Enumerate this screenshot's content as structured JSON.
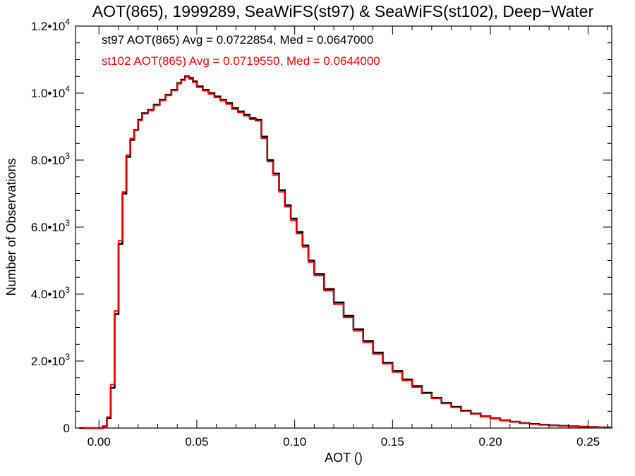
{
  "chart_data": {
    "type": "line",
    "title": "AOT(865), 1999289, SeaWiFS(st97) & SeaWiFS(st102), Deep−Water",
    "xlabel": "AOT ()",
    "ylabel": "Number of Observations",
    "xlim": [
      -0.012,
      0.262
    ],
    "ylim": [
      0,
      12000
    ],
    "x_ticks": [
      0.0,
      0.05,
      0.1,
      0.15,
      0.2,
      0.25
    ],
    "x_tick_labels": [
      "0.00",
      "0.05",
      "0.10",
      "0.15",
      "0.20",
      "0.25"
    ],
    "y_ticks": [
      0,
      2000,
      4000,
      6000,
      8000,
      10000,
      12000
    ],
    "y_tick_labels": [
      {
        "mant": "0",
        "exp": ""
      },
      {
        "mant": "2.0•10",
        "exp": "3"
      },
      {
        "mant": "4.0•10",
        "exp": "3"
      },
      {
        "mant": "6.0•10",
        "exp": "3"
      },
      {
        "mant": "8.0•10",
        "exp": "3"
      },
      {
        "mant": "1.0•10",
        "exp": "4"
      },
      {
        "mant": "1.2•10",
        "exp": "4"
      }
    ],
    "grid": false,
    "step": "histogram",
    "series": [
      {
        "name": "st97",
        "color": "#000000",
        "annotation": "st97 AOT(865) Avg = 0.0722854, Med = 0.0647000",
        "x": [
          -0.01,
          0.0,
          0.002,
          0.004,
          0.006,
          0.008,
          0.01,
          0.012,
          0.014,
          0.016,
          0.018,
          0.02,
          0.022,
          0.025,
          0.028,
          0.031,
          0.034,
          0.037,
          0.04,
          0.042,
          0.044,
          0.046,
          0.048,
          0.05,
          0.053,
          0.056,
          0.059,
          0.062,
          0.065,
          0.068,
          0.071,
          0.074,
          0.077,
          0.08,
          0.083,
          0.086,
          0.089,
          0.092,
          0.095,
          0.098,
          0.101,
          0.104,
          0.107,
          0.11,
          0.115,
          0.12,
          0.125,
          0.13,
          0.135,
          0.14,
          0.145,
          0.15,
          0.155,
          0.16,
          0.165,
          0.17,
          0.175,
          0.18,
          0.185,
          0.19,
          0.195,
          0.2,
          0.205,
          0.21,
          0.215,
          0.22,
          0.225,
          0.23,
          0.235,
          0.24,
          0.245,
          0.25,
          0.255,
          0.262
        ],
        "y": [
          0,
          0,
          50,
          300,
          1200,
          3400,
          5500,
          7000,
          8100,
          8600,
          8900,
          9200,
          9400,
          9500,
          9650,
          9800,
          9950,
          10100,
          10300,
          10400,
          10500,
          10450,
          10350,
          10200,
          10100,
          10000,
          9900,
          9800,
          9700,
          9550,
          9450,
          9350,
          9250,
          9200,
          8700,
          8000,
          7600,
          7100,
          6650,
          6250,
          5850,
          5450,
          5000,
          4600,
          4150,
          3750,
          3350,
          2950,
          2600,
          2250,
          1950,
          1700,
          1450,
          1250,
          1050,
          900,
          750,
          630,
          520,
          430,
          350,
          290,
          230,
          190,
          150,
          120,
          100,
          80,
          65,
          50,
          40,
          30,
          20,
          10
        ]
      },
      {
        "name": "st102",
        "color": "#ff0000",
        "annotation": "st102 AOT(865) Avg = 0.0719550, Med = 0.0644000",
        "x": [
          -0.01,
          0.0,
          0.002,
          0.004,
          0.006,
          0.008,
          0.01,
          0.012,
          0.014,
          0.016,
          0.018,
          0.02,
          0.022,
          0.025,
          0.028,
          0.031,
          0.034,
          0.037,
          0.04,
          0.042,
          0.044,
          0.046,
          0.048,
          0.05,
          0.053,
          0.056,
          0.059,
          0.062,
          0.065,
          0.068,
          0.071,
          0.074,
          0.077,
          0.08,
          0.083,
          0.086,
          0.089,
          0.092,
          0.095,
          0.098,
          0.101,
          0.104,
          0.107,
          0.11,
          0.115,
          0.12,
          0.125,
          0.13,
          0.135,
          0.14,
          0.145,
          0.15,
          0.155,
          0.16,
          0.165,
          0.17,
          0.175,
          0.18,
          0.185,
          0.19,
          0.195,
          0.2,
          0.205,
          0.21,
          0.215,
          0.22,
          0.225,
          0.23,
          0.235,
          0.24,
          0.245,
          0.25,
          0.255,
          0.262
        ],
        "y": [
          0,
          0,
          60,
          330,
          1300,
          3500,
          5600,
          7050,
          8150,
          8650,
          8900,
          9180,
          9380,
          9480,
          9630,
          9780,
          9930,
          10080,
          10280,
          10380,
          10480,
          10420,
          10320,
          10170,
          10070,
          9970,
          9870,
          9770,
          9670,
          9520,
          9420,
          9320,
          9220,
          9170,
          8650,
          7950,
          7550,
          7050,
          6600,
          6200,
          5800,
          5400,
          4950,
          4550,
          4100,
          3700,
          3300,
          2900,
          2560,
          2210,
          1920,
          1670,
          1420,
          1220,
          1030,
          880,
          730,
          615,
          505,
          420,
          340,
          280,
          225,
          185,
          145,
          115,
          95,
          75,
          60,
          48,
          38,
          28,
          18,
          8
        ]
      }
    ]
  }
}
